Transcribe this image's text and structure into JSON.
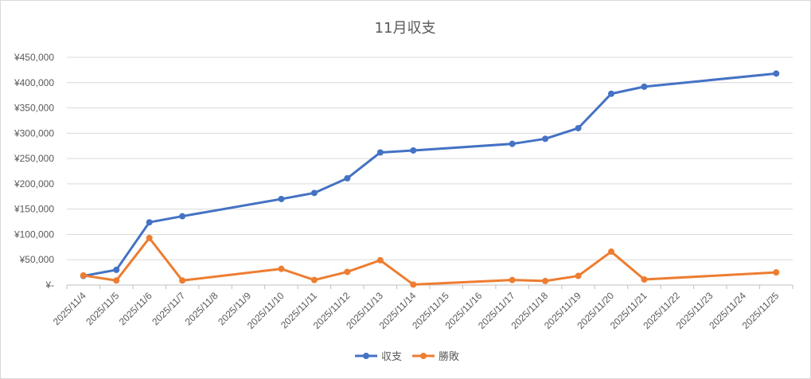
{
  "chart_data": {
    "type": "line",
    "title": "11月収支",
    "xlabel": "",
    "ylabel": "",
    "x": [
      "2025/11/4",
      "2025/11/5",
      "2025/11/6",
      "2025/11/7",
      "2025/11/8",
      "2025/11/9",
      "2025/11/10",
      "2025/11/11",
      "2025/11/12",
      "2025/11/13",
      "2025/11/14",
      "2025/11/15",
      "2025/11/16",
      "2025/11/17",
      "2025/11/18",
      "2025/11/19",
      "2025/11/20",
      "2025/11/21",
      "2025/11/22",
      "2025/11/23",
      "2025/11/24",
      "2025/11/25"
    ],
    "ylim": [
      0,
      450000
    ],
    "y_ticks": [
      0,
      50000,
      100000,
      150000,
      200000,
      250000,
      300000,
      350000,
      400000,
      450000
    ],
    "y_tick_labels": [
      "¥-",
      "¥50,000",
      "¥100,000",
      "¥150,000",
      "¥200,000",
      "¥250,000",
      "¥300,000",
      "¥350,000",
      "¥400,000",
      "¥450,000"
    ],
    "grid": true,
    "legend_position": "bottom",
    "series": [
      {
        "name": "収支",
        "color": "#4472c4",
        "points": [
          [
            "2025/11/4",
            18000
          ],
          [
            "2025/11/5",
            30000
          ],
          [
            "2025/11/6",
            124000
          ],
          [
            "2025/11/7",
            136000
          ],
          [
            "2025/11/10",
            170000
          ],
          [
            "2025/11/11",
            182000
          ],
          [
            "2025/11/12",
            211000
          ],
          [
            "2025/11/13",
            262000
          ],
          [
            "2025/11/14",
            266000
          ],
          [
            "2025/11/17",
            279000
          ],
          [
            "2025/11/18",
            289000
          ],
          [
            "2025/11/19",
            310000
          ],
          [
            "2025/11/20",
            378000
          ],
          [
            "2025/11/21",
            392000
          ],
          [
            "2025/11/25",
            418000
          ]
        ]
      },
      {
        "name": "勝敗",
        "color": "#ed7d31",
        "points": [
          [
            "2025/11/4",
            19000
          ],
          [
            "2025/11/5",
            9000
          ],
          [
            "2025/11/6",
            93000
          ],
          [
            "2025/11/7",
            9000
          ],
          [
            "2025/11/10",
            32000
          ],
          [
            "2025/11/11",
            10000
          ],
          [
            "2025/11/12",
            26000
          ],
          [
            "2025/11/13",
            49000
          ],
          [
            "2025/11/14",
            1000
          ],
          [
            "2025/11/17",
            10000
          ],
          [
            "2025/11/18",
            8000
          ],
          [
            "2025/11/19",
            18000
          ],
          [
            "2025/11/20",
            66000
          ],
          [
            "2025/11/21",
            11000
          ],
          [
            "2025/11/25",
            25000
          ]
        ]
      }
    ]
  }
}
